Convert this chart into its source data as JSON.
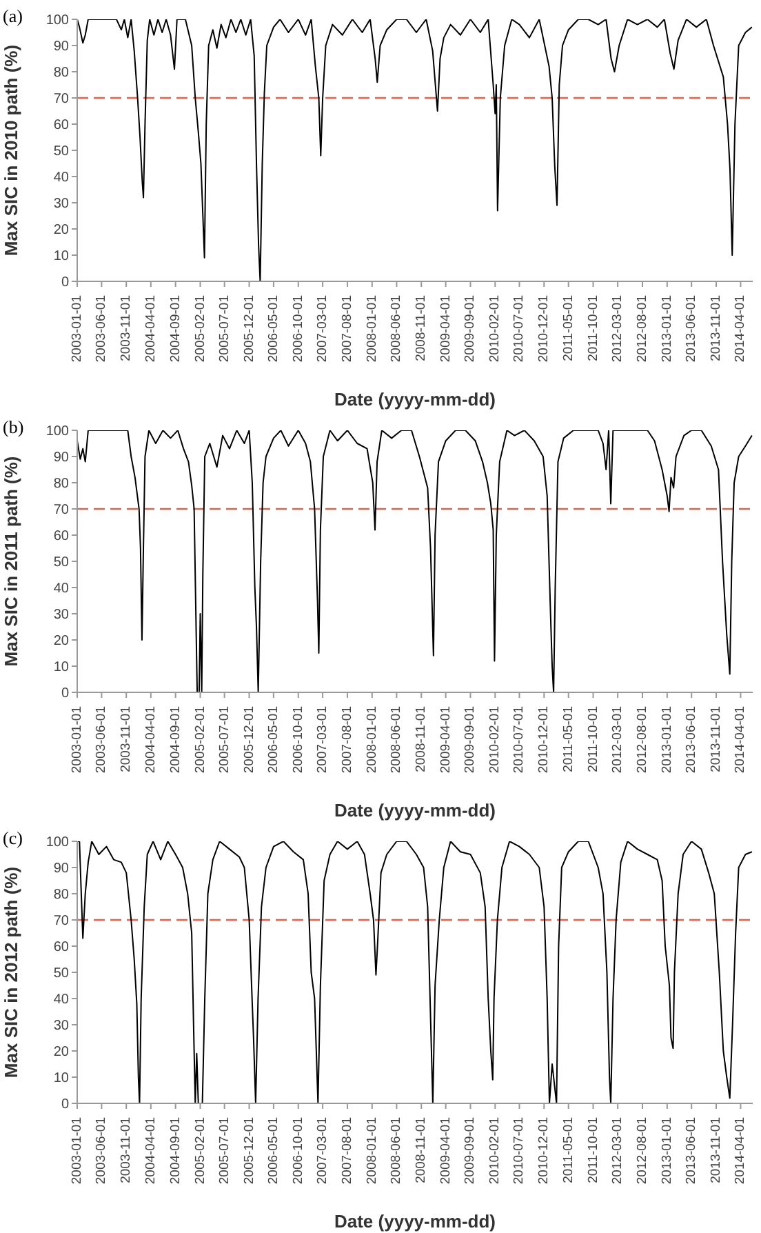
{
  "chart_data": [
    {
      "type": "line",
      "title": "(a)",
      "xlabel": "Date (yyyy-mm-dd)",
      "ylabel": "Max SIC in 2010  path (%)",
      "color": "#000000",
      "x": [
        "2003-01-01",
        "2003-01-15",
        "2003-02-05",
        "2003-02-20",
        "2003-03-10",
        "2003-09-01",
        "2003-10-01",
        "2003-10-20",
        "2003-11-10",
        "2003-12-01",
        "2003-12-20",
        "2004-01-10",
        "2004-01-25",
        "2004-02-08",
        "2004-02-15",
        "2004-02-25",
        "2004-03-10",
        "2004-03-25",
        "2004-04-20",
        "2004-05-15",
        "2004-06-10",
        "2004-07-05",
        "2004-08-01",
        "2004-08-25",
        "2004-09-10",
        "2004-11-01",
        "2004-12-10",
        "2005-01-01",
        "2005-01-20",
        "2005-02-05",
        "2005-02-27",
        "2005-03-10",
        "2005-03-25",
        "2005-04-20",
        "2005-05-15",
        "2005-06-10",
        "2005-07-10",
        "2005-08-10",
        "2005-09-10",
        "2005-10-10",
        "2005-11-10",
        "2005-12-10",
        "2006-01-01",
        "2006-01-15",
        "2006-01-28",
        "2006-02-07",
        "2006-02-20",
        "2006-03-05",
        "2006-03-20",
        "2006-05-01",
        "2006-06-10",
        "2006-08-01",
        "2006-10-01",
        "2006-11-15",
        "2006-12-20",
        "2007-01-15",
        "2007-02-05",
        "2007-02-17",
        "2007-03-01",
        "2007-03-20",
        "2007-05-01",
        "2007-07-01",
        "2007-09-01",
        "2007-11-01",
        "2007-12-20",
        "2008-01-20",
        "2008-02-02",
        "2008-02-20",
        "2008-04-01",
        "2008-06-01",
        "2008-08-01",
        "2008-10-01",
        "2008-12-01",
        "2009-01-10",
        "2009-02-09",
        "2009-02-25",
        "2009-03-20",
        "2009-05-01",
        "2009-07-01",
        "2009-09-01",
        "2009-11-01",
        "2009-12-20",
        "2010-01-20",
        "2010-02-01",
        "2010-02-08",
        "2010-02-16",
        "2010-03-05",
        "2010-04-01",
        "2010-05-15",
        "2010-07-01",
        "2010-09-01",
        "2010-11-01",
        "2011-01-01",
        "2011-01-20",
        "2011-02-05",
        "2011-02-19",
        "2011-03-05",
        "2011-03-25",
        "2011-05-01",
        "2011-07-01",
        "2011-09-01",
        "2011-11-01",
        "2011-12-20",
        "2012-01-20",
        "2012-02-10",
        "2012-03-10",
        "2012-05-01",
        "2012-07-01",
        "2012-09-01",
        "2012-11-01",
        "2012-12-15",
        "2013-01-20",
        "2013-02-12",
        "2013-03-10",
        "2013-05-01",
        "2013-07-01",
        "2013-09-01",
        "2013-10-15",
        "2013-12-15",
        "2014-01-10",
        "2014-01-25",
        "2014-02-08",
        "2014-02-25",
        "2014-03-20",
        "2014-05-01",
        "2014-06-10"
      ],
      "values": [
        100,
        97,
        91,
        94,
        100,
        100,
        96,
        100,
        93,
        100,
        88,
        70,
        55,
        38,
        32,
        60,
        92,
        100,
        94,
        100,
        95,
        100,
        94,
        81,
        100,
        100,
        90,
        70,
        57,
        45,
        9,
        60,
        90,
        96,
        89,
        98,
        93,
        100,
        95,
        100,
        94,
        100,
        86,
        45,
        14,
        0,
        45,
        72,
        90,
        97,
        100,
        95,
        100,
        94,
        100,
        82,
        70,
        48,
        70,
        90,
        98,
        94,
        100,
        95,
        100,
        85,
        76,
        90,
        96,
        100,
        100,
        95,
        100,
        88,
        65,
        85,
        93,
        98,
        94,
        100,
        95,
        100,
        75,
        64,
        75,
        27,
        70,
        90,
        100,
        98,
        93,
        100,
        82,
        70,
        44,
        29,
        75,
        90,
        96,
        100,
        100,
        98,
        100,
        85,
        80,
        90,
        100,
        98,
        100,
        97,
        100,
        87,
        81,
        92,
        100,
        97,
        100,
        90,
        78,
        60,
        43,
        10,
        60,
        90,
        95,
        97
      ],
      "xlim": [
        "2003-01-01",
        "2014-06-15"
      ],
      "xticks": [
        "2003-01-01",
        "2003-06-01",
        "2003-11-01",
        "2004-04-01",
        "2004-09-01",
        "2005-02-01",
        "2005-07-01",
        "2005-12-01",
        "2006-05-01",
        "2006-10-01",
        "2007-03-01",
        "2007-08-01",
        "2008-01-01",
        "2008-06-01",
        "2008-11-01",
        "2009-04-01",
        "2009-09-01",
        "2010-02-01",
        "2010-07-01",
        "2010-12-01",
        "2011-05-01",
        "2011-10-01",
        "2012-03-01",
        "2012-08-01",
        "2013-01-01",
        "2013-06-01",
        "2013-11-01",
        "2014-04-01"
      ],
      "ylim": [
        0,
        100
      ],
      "yticks": [
        0,
        10,
        20,
        30,
        40,
        50,
        60,
        70,
        80,
        90,
        100
      ],
      "ref_lines": [
        {
          "axis": "y",
          "value": 70,
          "color": "#e8604c",
          "line_style": "dashed"
        }
      ]
    },
    {
      "type": "line",
      "title": "(b)",
      "xlabel": "Date (yyyy-mm-dd)",
      "ylabel": "Max SIC in 2011  path (%)",
      "color": "#000000",
      "x": [
        "2003-01-01",
        "2003-01-20",
        "2003-02-05",
        "2003-02-20",
        "2003-03-10",
        "2003-11-10",
        "2003-12-01",
        "2003-12-25",
        "2004-01-19",
        "2004-01-28",
        "2004-02-06",
        "2004-02-15",
        "2004-02-25",
        "2004-03-20",
        "2004-05-01",
        "2004-06-15",
        "2004-08-01",
        "2004-09-15",
        "2004-10-20",
        "2004-11-20",
        "2004-12-10",
        "2004-12-25",
        "2005-01-13",
        "2005-01-25",
        "2005-02-01",
        "2005-02-10",
        "2005-02-17",
        "2005-03-01",
        "2005-04-01",
        "2005-05-15",
        "2005-06-20",
        "2005-08-01",
        "2005-09-15",
        "2005-11-01",
        "2005-12-01",
        "2005-12-20",
        "2006-01-05",
        "2006-01-15",
        "2006-01-26",
        "2006-02-10",
        "2006-02-25",
        "2006-03-15",
        "2006-05-01",
        "2006-06-15",
        "2006-08-01",
        "2006-10-01",
        "2006-11-15",
        "2006-12-15",
        "2007-01-10",
        "2007-01-28",
        "2007-02-05",
        "2007-02-15",
        "2007-03-05",
        "2007-04-15",
        "2007-06-01",
        "2007-08-01",
        "2007-10-01",
        "2007-12-01",
        "2008-01-05",
        "2008-01-19",
        "2008-02-01",
        "2008-03-01",
        "2008-05-01",
        "2008-07-01",
        "2008-09-01",
        "2008-10-20",
        "2008-12-10",
        "2008-12-28",
        "2009-01-15",
        "2009-01-25",
        "2009-02-15",
        "2009-04-01",
        "2009-06-01",
        "2009-08-01",
        "2009-10-01",
        "2009-11-15",
        "2009-12-15",
        "2010-01-05",
        "2010-01-20",
        "2010-01-28",
        "2010-02-08",
        "2010-03-01",
        "2010-04-15",
        "2010-06-01",
        "2010-08-01",
        "2010-10-01",
        "2010-11-25",
        "2010-12-20",
        "2011-01-10",
        "2011-01-20",
        "2011-01-29",
        "2011-02-08",
        "2011-02-25",
        "2011-04-01",
        "2011-06-01",
        "2011-09-01",
        "2011-11-01",
        "2011-12-01",
        "2011-12-20",
        "2012-01-05",
        "2012-01-18",
        "2012-02-01",
        "2012-06-01",
        "2012-09-01",
        "2012-10-15",
        "2012-12-01",
        "2013-01-01",
        "2013-01-13",
        "2013-01-25",
        "2013-02-10",
        "2013-02-25",
        "2013-04-15",
        "2013-06-01",
        "2013-08-01",
        "2013-10-01",
        "2013-11-15",
        "2013-12-10",
        "2014-01-05",
        "2014-01-24",
        "2014-02-05",
        "2014-02-20",
        "2014-03-20",
        "2014-05-01",
        "2014-06-10"
      ],
      "values": [
        96,
        89,
        93,
        88,
        100,
        100,
        90,
        82,
        70,
        55,
        20,
        55,
        90,
        100,
        95,
        100,
        97,
        100,
        93,
        88,
        79,
        70,
        0,
        0,
        30,
        0,
        45,
        90,
        95,
        86,
        98,
        93,
        100,
        95,
        100,
        80,
        40,
        25,
        0,
        50,
        80,
        90,
        97,
        100,
        94,
        100,
        95,
        88,
        70,
        35,
        15,
        62,
        90,
        100,
        96,
        100,
        95,
        93,
        80,
        62,
        88,
        100,
        97,
        100,
        100,
        90,
        78,
        55,
        14,
        60,
        88,
        96,
        100,
        100,
        96,
        88,
        80,
        72,
        62,
        12,
        60,
        88,
        100,
        98,
        100,
        96,
        90,
        75,
        30,
        10,
        0,
        40,
        88,
        97,
        100,
        100,
        100,
        95,
        85,
        100,
        72,
        100,
        100,
        100,
        96,
        85,
        75,
        69,
        82,
        78,
        90,
        98,
        100,
        100,
        94,
        85,
        50,
        22,
        7,
        50,
        80,
        90,
        94,
        98
      ],
      "xlim": [
        "2003-01-01",
        "2014-06-15"
      ],
      "xticks": [
        "2003-01-01",
        "2003-06-01",
        "2003-11-01",
        "2004-04-01",
        "2004-09-01",
        "2005-02-01",
        "2005-07-01",
        "2005-12-01",
        "2006-05-01",
        "2006-10-01",
        "2007-03-01",
        "2007-08-01",
        "2008-01-01",
        "2008-06-01",
        "2008-11-01",
        "2009-04-01",
        "2009-09-01",
        "2010-02-01",
        "2010-07-01",
        "2010-12-01",
        "2011-05-01",
        "2011-10-01",
        "2012-03-01",
        "2012-08-01",
        "2013-01-01",
        "2013-06-01",
        "2013-11-01",
        "2014-04-01"
      ],
      "ylim": [
        0,
        100
      ],
      "yticks": [
        0,
        10,
        20,
        30,
        40,
        50,
        60,
        70,
        80,
        90,
        100
      ],
      "ref_lines": [
        {
          "axis": "y",
          "value": 70,
          "color": "#e8604c",
          "line_style": "dashed"
        }
      ]
    },
    {
      "type": "line",
      "title": "(c)",
      "xlabel": "Date (yyyy-mm-dd)",
      "ylabel": "Max SIC in 2012  path (%)",
      "color": "#000000",
      "x": [
        "2003-01-01",
        "2003-01-15",
        "2003-01-25",
        "2003-02-05",
        "2003-02-20",
        "2003-03-10",
        "2003-04-01",
        "2003-05-15",
        "2003-07-01",
        "2003-08-15",
        "2003-10-01",
        "2003-11-01",
        "2003-12-01",
        "2003-12-20",
        "2004-01-05",
        "2004-01-15",
        "2004-01-22",
        "2004-02-01",
        "2004-02-20",
        "2004-03-10",
        "2004-04-15",
        "2004-06-01",
        "2004-07-15",
        "2004-09-01",
        "2004-10-15",
        "2004-11-15",
        "2004-12-10",
        "2004-12-25",
        "2005-01-01",
        "2005-01-10",
        "2005-01-20",
        "2005-02-14",
        "2005-03-01",
        "2005-03-20",
        "2005-04-20",
        "2005-06-01",
        "2005-08-01",
        "2005-10-01",
        "2005-11-01",
        "2005-12-01",
        "2005-12-20",
        "2005-12-28",
        "2006-01-10",
        "2006-01-25",
        "2006-02-15",
        "2006-03-15",
        "2006-05-01",
        "2006-07-01",
        "2006-09-01",
        "2006-11-01",
        "2006-12-01",
        "2006-12-20",
        "2007-01-10",
        "2007-01-31",
        "2007-02-15",
        "2007-03-10",
        "2007-04-15",
        "2007-06-01",
        "2007-08-01",
        "2007-10-01",
        "2007-11-15",
        "2007-12-20",
        "2008-01-10",
        "2008-01-25",
        "2008-02-05",
        "2008-02-25",
        "2008-04-01",
        "2008-06-01",
        "2008-08-01",
        "2008-10-01",
        "2008-11-15",
        "2008-12-10",
        "2008-12-25",
        "2009-01-11",
        "2009-01-25",
        "2009-02-20",
        "2009-03-20",
        "2009-05-01",
        "2009-07-01",
        "2009-09-01",
        "2009-11-01",
        "2009-12-01",
        "2009-12-20",
        "2010-01-05",
        "2010-01-17",
        "2010-01-25",
        "2010-02-15",
        "2010-03-15",
        "2010-05-01",
        "2010-07-01",
        "2010-09-01",
        "2010-11-01",
        "2010-12-01",
        "2010-12-20",
        "2011-01-03",
        "2011-01-20",
        "2011-02-16",
        "2011-03-01",
        "2011-03-20",
        "2011-05-01",
        "2011-07-01",
        "2011-09-01",
        "2011-11-01",
        "2011-12-01",
        "2011-12-25",
        "2012-01-10",
        "2012-01-18",
        "2012-02-01",
        "2012-02-20",
        "2012-03-20",
        "2012-05-01",
        "2012-07-01",
        "2012-09-01",
        "2012-11-01",
        "2012-12-01",
        "2012-12-20",
        "2013-01-15",
        "2013-01-25",
        "2013-02-07",
        "2013-02-15",
        "2013-03-10",
        "2013-04-10",
        "2013-06-01",
        "2013-08-01",
        "2013-09-15",
        "2013-10-20",
        "2013-11-20",
        "2013-12-15",
        "2014-01-05",
        "2014-01-24",
        "2014-02-10",
        "2014-03-01",
        "2014-03-20",
        "2014-05-01",
        "2014-06-10"
      ],
      "values": [
        100,
        100,
        82,
        63,
        80,
        92,
        100,
        95,
        98,
        93,
        92,
        88,
        70,
        55,
        38,
        10,
        0,
        40,
        75,
        95,
        100,
        93,
        100,
        95,
        90,
        80,
        65,
        20,
        0,
        19,
        0,
        0,
        40,
        80,
        93,
        100,
        97,
        94,
        90,
        70,
        38,
        25,
        0,
        40,
        75,
        90,
        98,
        100,
        96,
        93,
        80,
        50,
        40,
        0,
        45,
        85,
        95,
        100,
        97,
        100,
        95,
        80,
        70,
        49,
        62,
        88,
        95,
        100,
        100,
        95,
        90,
        75,
        40,
        0,
        45,
        70,
        90,
        100,
        96,
        95,
        88,
        75,
        40,
        20,
        9,
        40,
        70,
        90,
        100,
        98,
        95,
        90,
        75,
        40,
        0,
        15,
        0,
        60,
        90,
        96,
        100,
        100,
        90,
        80,
        50,
        10,
        0,
        40,
        70,
        92,
        100,
        97,
        95,
        93,
        85,
        60,
        45,
        25,
        21,
        50,
        80,
        95,
        100,
        97,
        88,
        80,
        50,
        20,
        10,
        2,
        30,
        65,
        90,
        95,
        96
      ],
      "xlim": [
        "2003-01-01",
        "2014-06-15"
      ],
      "xticks": [
        "2003-01-01",
        "2003-06-01",
        "2003-11-01",
        "2004-04-01",
        "2004-09-01",
        "2005-02-01",
        "2005-07-01",
        "2005-12-01",
        "2006-05-01",
        "2006-10-01",
        "2007-03-01",
        "2007-08-01",
        "2008-01-01",
        "2008-06-01",
        "2008-11-01",
        "2009-04-01",
        "2009-09-01",
        "2010-02-01",
        "2010-07-01",
        "2010-12-01",
        "2011-05-01",
        "2011-10-01",
        "2012-03-01",
        "2012-08-01",
        "2013-01-01",
        "2013-06-01",
        "2013-11-01",
        "2014-04-01"
      ],
      "ylim": [
        0,
        100
      ],
      "yticks": [
        0,
        10,
        20,
        30,
        40,
        50,
        60,
        70,
        80,
        90,
        100
      ],
      "ref_lines": [
        {
          "axis": "y",
          "value": 70,
          "color": "#e8604c",
          "line_style": "dashed"
        }
      ]
    }
  ]
}
